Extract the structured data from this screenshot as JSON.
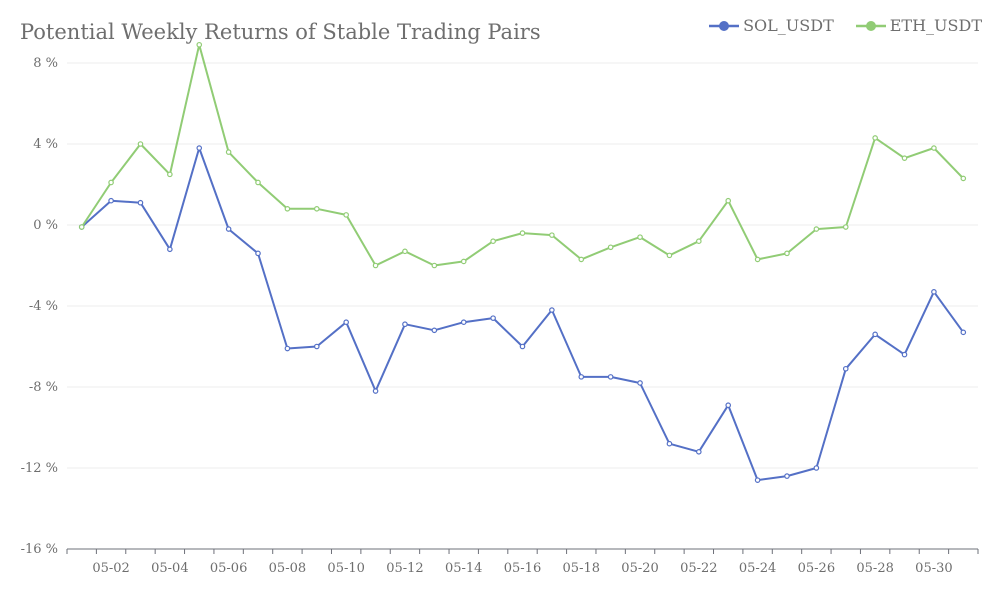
{
  "chart_data": {
    "type": "line",
    "title": "Potential Weekly Returns of Stable Trading Pairs",
    "xlabel": "",
    "ylabel": "",
    "ylim": [
      -16,
      8
    ],
    "y_ticks": [
      8,
      4,
      0,
      -4,
      -8,
      -12,
      -16
    ],
    "y_tick_suffix": " %",
    "x": [
      "05-01",
      "05-02",
      "05-03",
      "05-04",
      "05-05",
      "05-06",
      "05-07",
      "05-08",
      "05-09",
      "05-10",
      "05-11",
      "05-12",
      "05-13",
      "05-14",
      "05-15",
      "05-16",
      "05-17",
      "05-18",
      "05-19",
      "05-20",
      "05-21",
      "05-22",
      "05-23",
      "05-24",
      "05-25",
      "05-26",
      "05-27",
      "05-28",
      "05-29",
      "05-30",
      "05-31"
    ],
    "x_tick_labels": [
      "05-02",
      "05-04",
      "05-06",
      "05-08",
      "05-10",
      "05-12",
      "05-14",
      "05-16",
      "05-18",
      "05-20",
      "05-22",
      "05-24",
      "05-26",
      "05-28",
      "05-30"
    ],
    "grid": true,
    "legend_position": "top-right",
    "series": [
      {
        "name": "SOL_USDT",
        "color": "#5470c6",
        "values": [
          -0.1,
          1.2,
          1.1,
          -1.2,
          3.8,
          -0.2,
          -1.4,
          -6.1,
          -6.0,
          -4.8,
          -8.2,
          -4.9,
          -5.2,
          -4.8,
          -4.6,
          -6.0,
          -4.2,
          -7.5,
          -7.5,
          -7.8,
          -10.8,
          -11.2,
          -8.9,
          -12.6,
          -12.4,
          -12.0,
          -7.1,
          -5.4,
          -6.4,
          -3.3,
          -5.3
        ]
      },
      {
        "name": "ETH_USDT",
        "color": "#91cc75",
        "values": [
          -0.1,
          2.1,
          4.0,
          2.5,
          8.9,
          3.6,
          2.1,
          0.8,
          0.8,
          0.5,
          -2.0,
          -1.3,
          -2.0,
          -1.8,
          -0.8,
          -0.4,
          -0.5,
          -1.7,
          -1.1,
          -0.6,
          -1.5,
          -0.8,
          1.2,
          -1.7,
          -1.4,
          -0.2,
          -0.1,
          4.3,
          3.3,
          3.8,
          2.3
        ]
      }
    ]
  }
}
